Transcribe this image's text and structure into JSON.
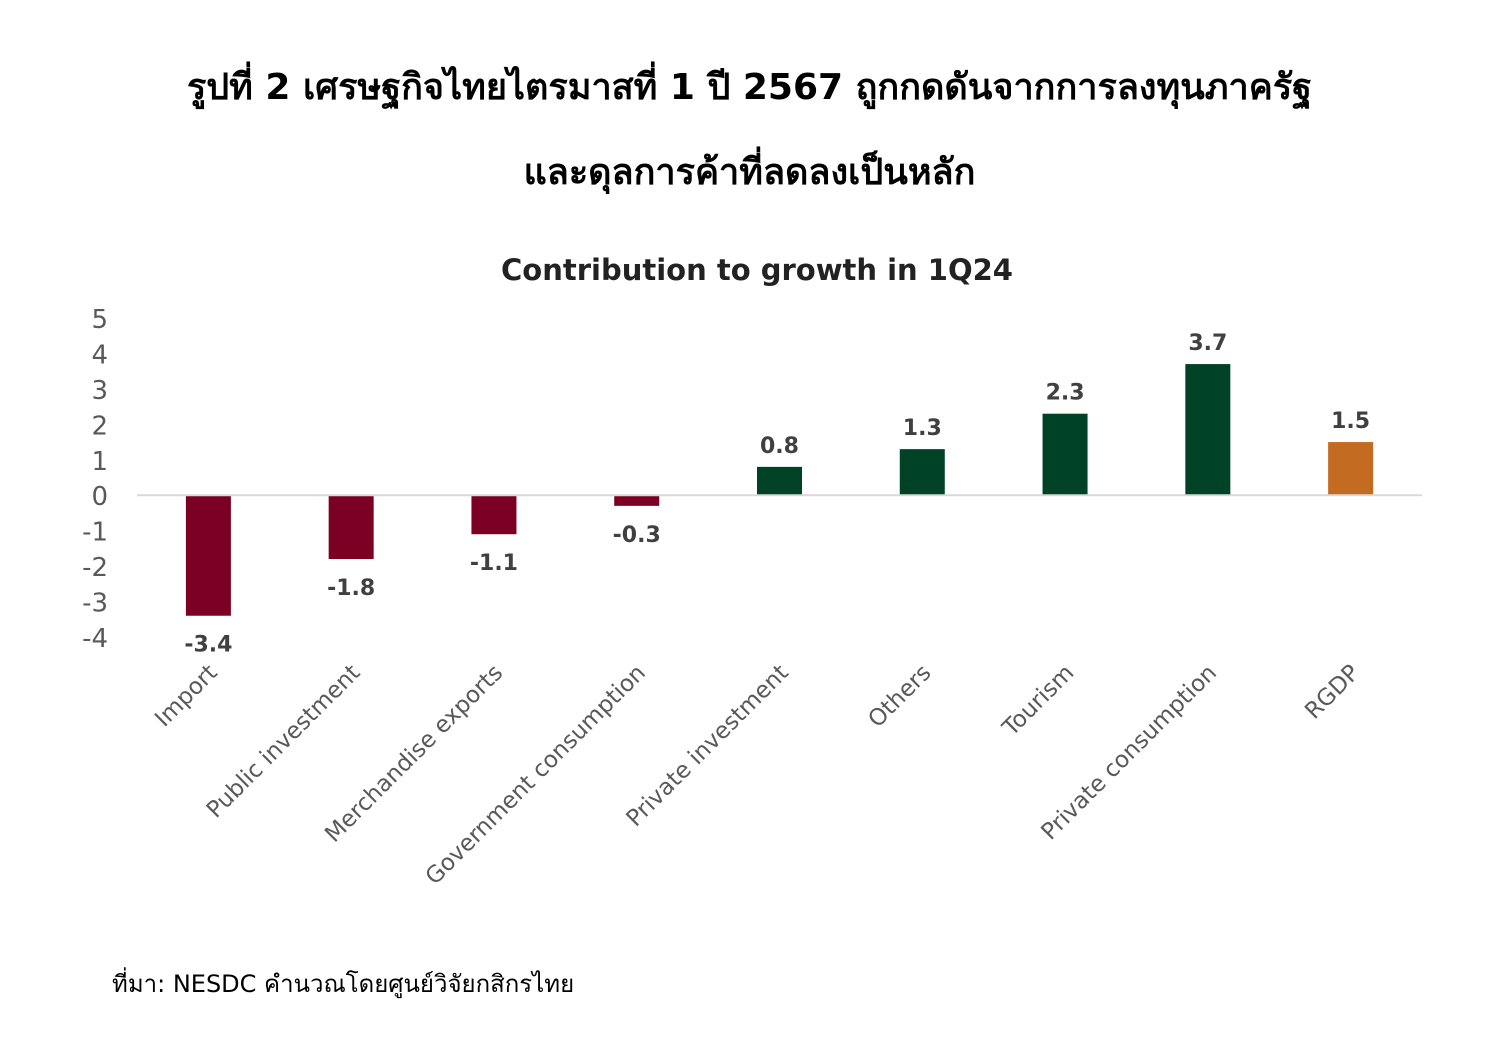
{
  "page": {
    "heading_line_1": "รูปที่ 2 เศรษฐกิจไทยไตรมาสที่ 1 ปี 2567 ถูกกดดันจากการลงทุนภาครัฐ",
    "heading_line_2": "และดุลการค้าที่ลดลงเป็นหลัก",
    "source_note": "ที่มา: NESDC คำนวณโดยศูนย์วิจัยกสิกรไทย"
  },
  "chart_data": {
    "type": "bar",
    "title": "Contribution to growth in 1Q24",
    "xlabel": "",
    "ylabel": "",
    "ylim": [
      -4,
      5
    ],
    "yticks": [
      5,
      4,
      3,
      2,
      1,
      0,
      -1,
      -2,
      -3,
      -4
    ],
    "grid": false,
    "legend": "none",
    "categories": [
      "Import",
      "Public investment",
      "Merchandise exports",
      "Government consumption",
      "Private investment",
      "Others",
      "Tourism",
      "Private consumption",
      "RGDP"
    ],
    "values": [
      -3.4,
      -1.8,
      -1.1,
      -0.3,
      0.8,
      1.3,
      2.3,
      3.7,
      1.5
    ],
    "data_labels": [
      "-3.4",
      "-1.8",
      "-1.1",
      "-0.3",
      "0.8",
      "1.3",
      "2.3",
      "3.7",
      "1.5"
    ],
    "colors": {
      "negative": "#7B0023",
      "positive": "#004225",
      "total": "#C46B22",
      "axis": "#D9D9D9",
      "tick_text": "#595959",
      "label_text": "#404040"
    }
  }
}
